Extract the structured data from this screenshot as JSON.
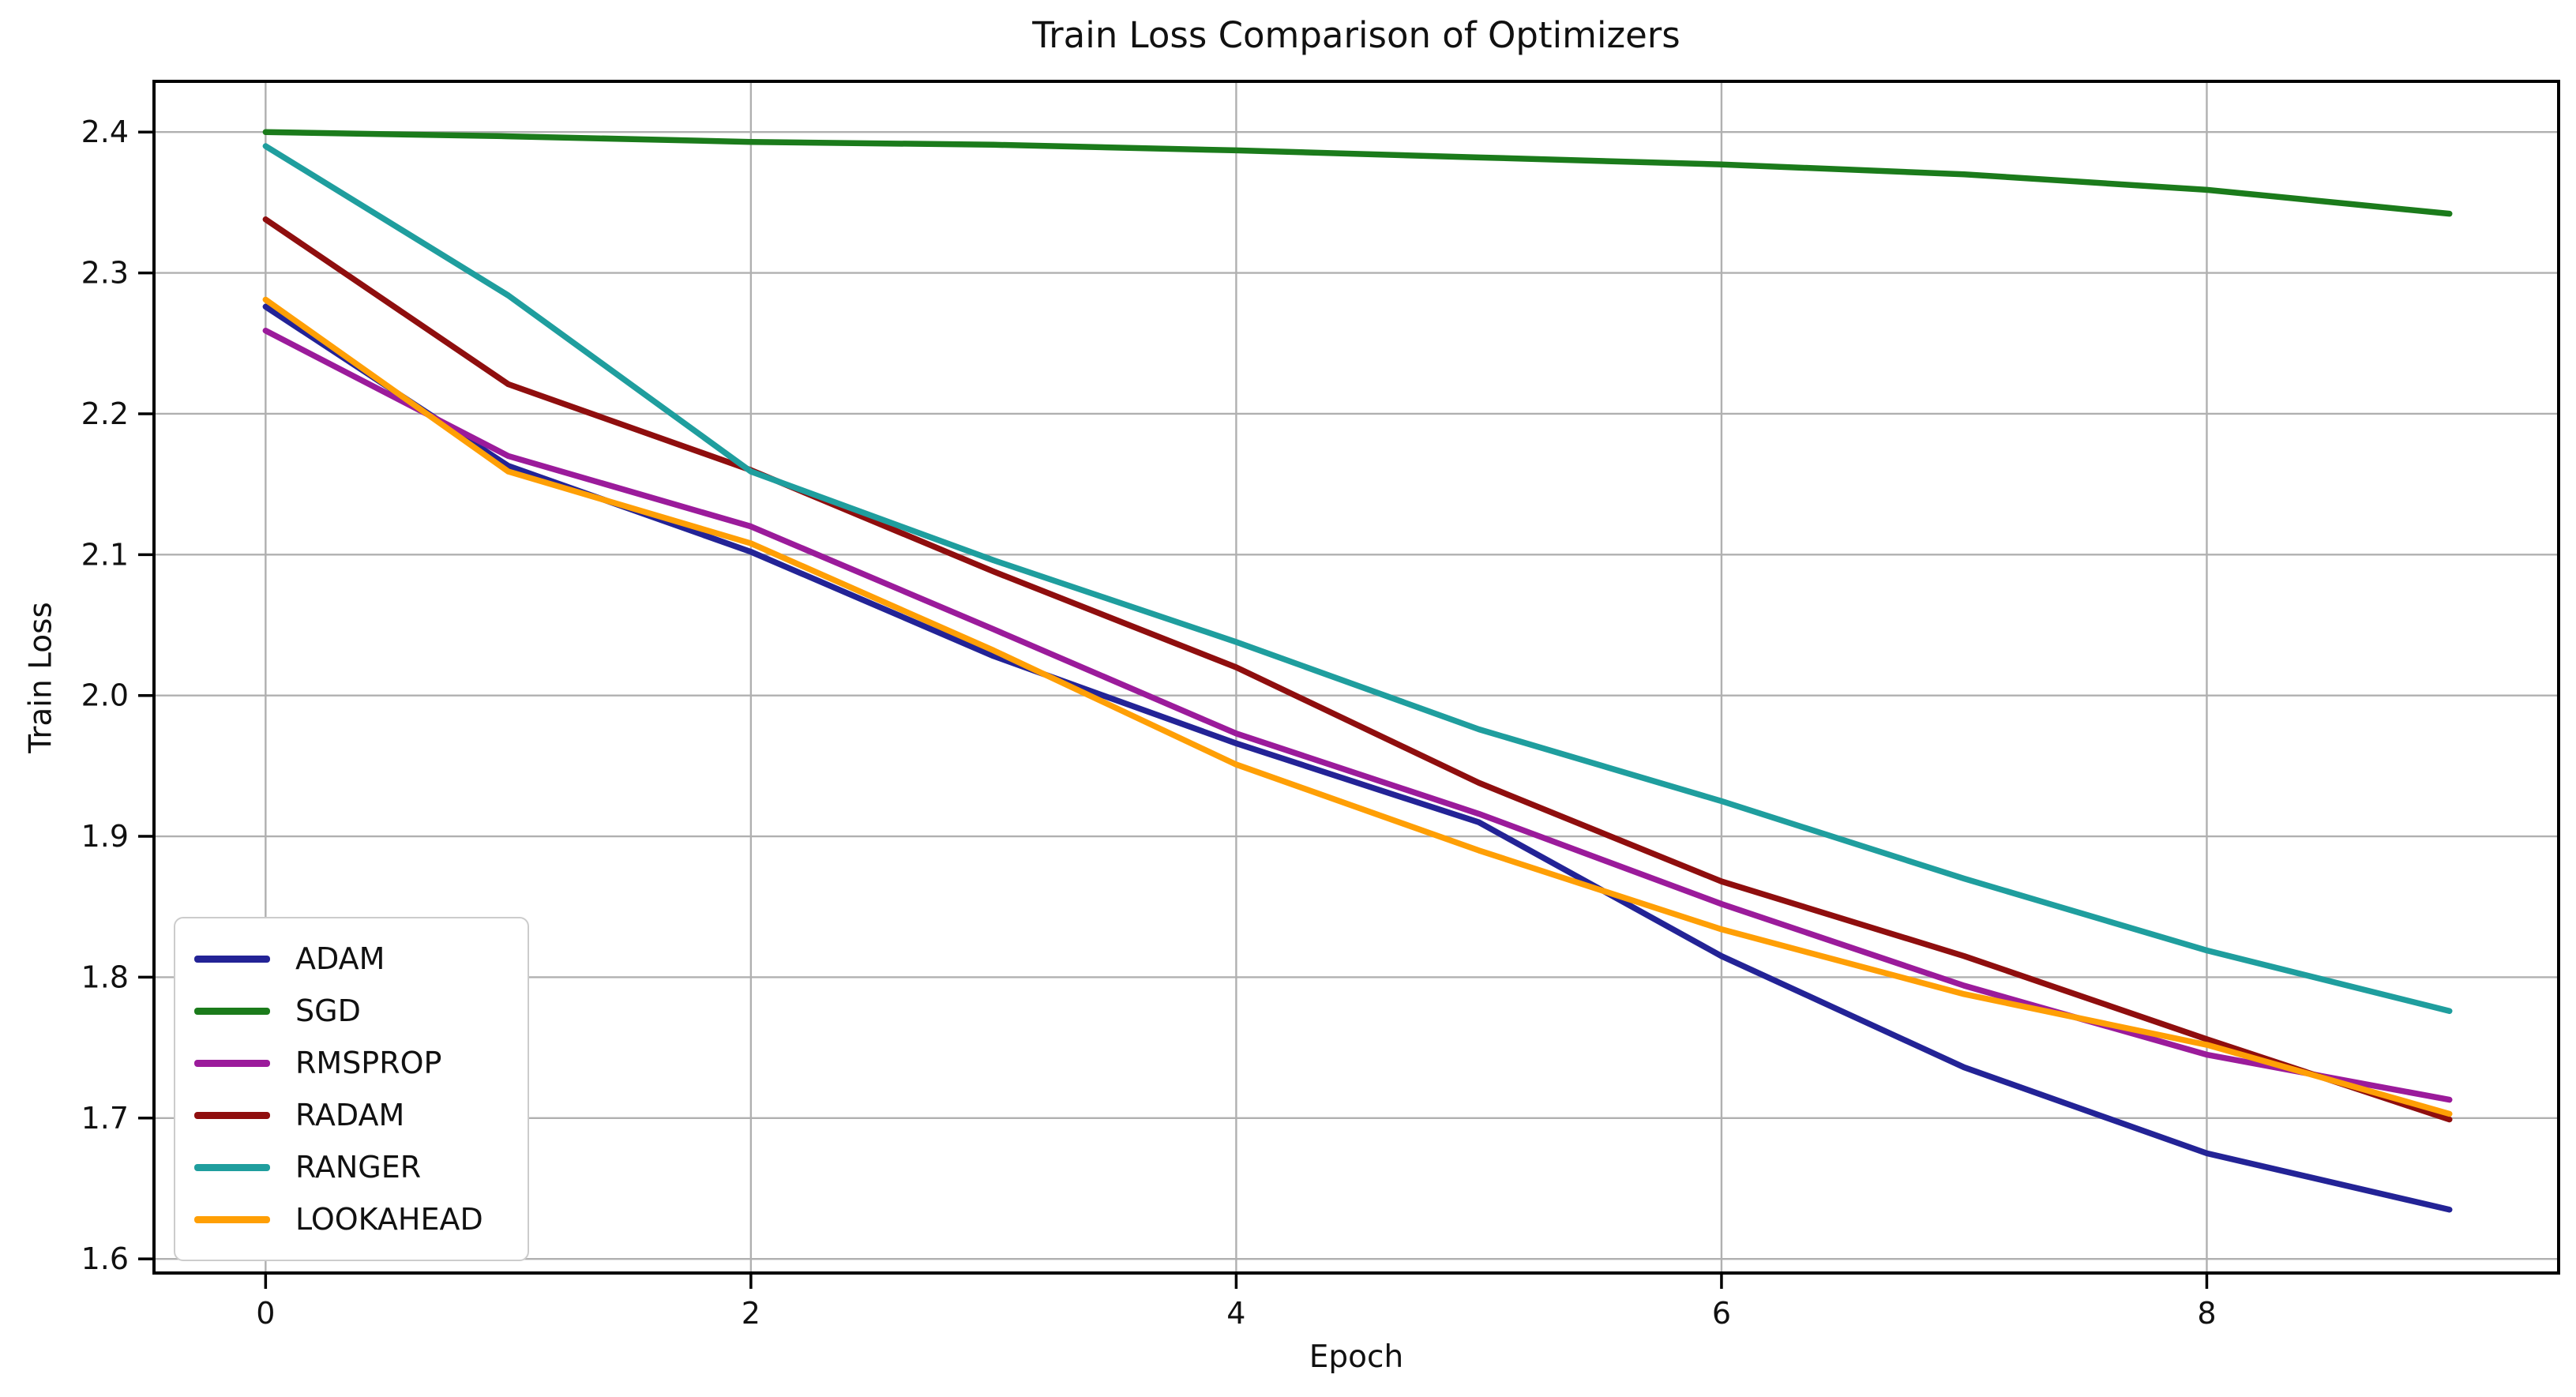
{
  "title": "Train Loss Comparison of Optimizers",
  "chart_data": {
    "type": "line",
    "title": "Train Loss Comparison of Optimizers",
    "xlabel": "Epoch",
    "ylabel": "Train Loss",
    "x": [
      0,
      1,
      2,
      3,
      4,
      5,
      6,
      7,
      8,
      9
    ],
    "series": [
      {
        "name": "ADAM",
        "color": "#232396",
        "values": [
          2.276,
          2.163,
          2.102,
          2.028,
          1.966,
          1.91,
          1.815,
          1.736,
          1.675,
          1.635
        ]
      },
      {
        "name": "SGD",
        "color": "#1b7b1b",
        "values": [
          2.4,
          2.397,
          2.393,
          2.391,
          2.387,
          2.382,
          2.377,
          2.37,
          2.359,
          2.342
        ]
      },
      {
        "name": "RMSPROP",
        "color": "#9b1b9b",
        "values": [
          2.259,
          2.17,
          2.12,
          2.047,
          1.973,
          1.916,
          1.852,
          1.794,
          1.745,
          1.713
        ]
      },
      {
        "name": "RADAM",
        "color": "#8f0e0e",
        "values": [
          2.338,
          2.221,
          2.16,
          2.088,
          2.02,
          1.938,
          1.868,
          1.815,
          1.756,
          1.699
        ]
      },
      {
        "name": "RANGER",
        "color": "#1f9e9e",
        "values": [
          2.39,
          2.284,
          2.159,
          2.096,
          2.038,
          1.976,
          1.925,
          1.87,
          1.819,
          1.776
        ]
      },
      {
        "name": "LOOKAHEAD",
        "color": "#ff9f05",
        "values": [
          2.281,
          2.159,
          2.108,
          2.032,
          1.951,
          1.89,
          1.834,
          1.788,
          1.752,
          1.703
        ]
      }
    ],
    "x_ticks": [
      0,
      2,
      4,
      6,
      8
    ],
    "y_ticks": [
      1.6,
      1.7,
      1.8,
      1.9,
      2.0,
      2.1,
      2.2,
      2.3,
      2.4
    ],
    "xlim": [
      -0.46,
      9.45
    ],
    "ylim": [
      1.59,
      2.436
    ],
    "grid": true,
    "grid_color": "#b0b0b0",
    "axis_color": "#000000",
    "tick_label_color": "#111111",
    "legend_position": "lower left",
    "background": "#ffffff"
  }
}
